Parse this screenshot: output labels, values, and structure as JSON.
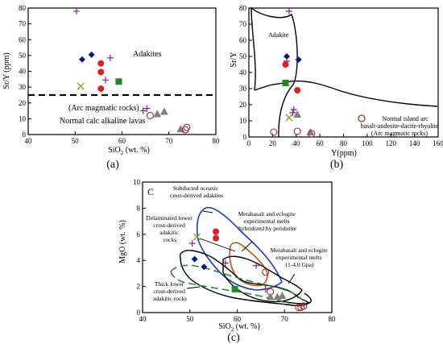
{
  "chart_data": [
    {
      "type": "scatter",
      "panel_letter": "(a)",
      "ylabel": "Sr/Y (ppm)",
      "xlabel_main": "SiO",
      "xlabel_sub": "2",
      "xlabel_rest": " (wt. %)",
      "xlim": [
        40,
        80
      ],
      "ylim": [
        0,
        80
      ],
      "xticks": [
        40,
        50,
        60,
        70,
        80
      ],
      "yticks": [
        0,
        10,
        20,
        30,
        40,
        50,
        60,
        70,
        80
      ],
      "divider_y": 25,
      "annotations": {
        "adakites": "Adakites",
        "arc": "(Arc magmatic rocks)",
        "calc": "Normal calc alkaline lavas"
      },
      "points": [
        {
          "x": 50.3,
          "y": 78.0,
          "m": "plus"
        },
        {
          "x": 51.5,
          "y": 47.5,
          "m": "diamond"
        },
        {
          "x": 53.5,
          "y": 50.5,
          "m": "diamond"
        },
        {
          "x": 55.5,
          "y": 45.0,
          "m": "circle"
        },
        {
          "x": 57.5,
          "y": 48.5,
          "m": "plus"
        },
        {
          "x": 55.5,
          "y": 39.5,
          "m": "circle"
        },
        {
          "x": 56.5,
          "y": 34.5,
          "m": "plus"
        },
        {
          "x": 59.3,
          "y": 33.5,
          "m": "square"
        },
        {
          "x": 55.5,
          "y": 29.0,
          "m": "circle"
        },
        {
          "x": 51.2,
          "y": 30.5,
          "m": "cross"
        },
        {
          "x": 64.5,
          "y": 15.0,
          "m": "plus"
        },
        {
          "x": 65.3,
          "y": 16.5,
          "m": "plus"
        },
        {
          "x": 66.0,
          "y": 12.0,
          "m": "hollow-circle"
        },
        {
          "x": 67.5,
          "y": 13.0,
          "m": "triangle"
        },
        {
          "x": 69.0,
          "y": 14.5,
          "m": "triangle"
        },
        {
          "x": 72.5,
          "y": 3.5,
          "m": "triangle"
        },
        {
          "x": 73.5,
          "y": 3.0,
          "m": "hollow-circle"
        },
        {
          "x": 73.8,
          "y": 4.5,
          "m": "hollow-circle"
        }
      ]
    },
    {
      "type": "scatter",
      "panel_letter": "(b)",
      "ylabel": "Sr/Y",
      "xlabel": "Y(ppm)",
      "xlim": [
        0,
        160
      ],
      "ylim": [
        0,
        80
      ],
      "xticks": [
        0,
        20,
        40,
        60,
        80,
        100,
        120,
        140,
        160
      ],
      "yticks": [
        0,
        10,
        20,
        30,
        40,
        50,
        60,
        70,
        80
      ],
      "annotations": {
        "adakite": "Adakite",
        "arc1": "Normal island arc",
        "arc2": "basalt-andesite-dacite-rhyolite",
        "arc3": "(Arc magmatic rocks)"
      },
      "points": [
        {
          "x": 34,
          "y": 78,
          "m": "plus"
        },
        {
          "x": 32,
          "y": 50,
          "m": "diamond"
        },
        {
          "x": 32,
          "y": 47,
          "m": "plus"
        },
        {
          "x": 42,
          "y": 48,
          "m": "diamond"
        },
        {
          "x": 31,
          "y": 45,
          "m": "circle"
        },
        {
          "x": 41,
          "y": 29,
          "m": "circle"
        },
        {
          "x": 31,
          "y": 33.5,
          "m": "square"
        },
        {
          "x": 38,
          "y": 17,
          "m": "plus"
        },
        {
          "x": 37,
          "y": 15,
          "m": "plus"
        },
        {
          "x": 41,
          "y": 14,
          "m": "triangle"
        },
        {
          "x": 34,
          "y": 12,
          "m": "cross"
        },
        {
          "x": 21,
          "y": 3,
          "m": "hollow-circle"
        },
        {
          "x": 41,
          "y": 3.5,
          "m": "hollow-circle"
        },
        {
          "x": 52,
          "y": 3,
          "m": "triangle"
        },
        {
          "x": 53,
          "y": 2,
          "m": "hollow-circle"
        }
      ]
    },
    {
      "type": "scatter",
      "panel_letter": "(c)",
      "corner_label": "C",
      "ylabel": "MgO (wt. %)",
      "xlabel_main": "SiO",
      "xlabel_sub": "2",
      "xlabel_rest": " (wt. %)",
      "xlim": [
        40,
        80
      ],
      "ylim": [
        0,
        10
      ],
      "xticks": [
        40,
        50,
        60,
        70,
        80
      ],
      "yticks": [
        0,
        2,
        4,
        6,
        8,
        10
      ],
      "annotations": {
        "subducted": [
          "Subducted oceanic",
          "crust-derived adakites"
        ],
        "delaminated": [
          "Delaminated lower",
          "crust-derived",
          "adakitic",
          "rocks"
        ],
        "metabasalt1": [
          "Metabasalt and eclogite",
          "experimental melts",
          "hybridized by peridotite"
        ],
        "metabasalt2": [
          "Metabasalt and eclogite",
          "experimental melts",
          "(1-4.0 Gpa)"
        ],
        "thick": [
          "Thick lower",
          "crust-derived",
          "adakitic rocks"
        ]
      },
      "points": [
        {
          "x": 50.5,
          "y": 5.3,
          "m": "plus"
        },
        {
          "x": 51.5,
          "y": 5.8,
          "m": "cross"
        },
        {
          "x": 55.5,
          "y": 6.2,
          "m": "circle"
        },
        {
          "x": 55.5,
          "y": 5.7,
          "m": "circle"
        },
        {
          "x": 51.0,
          "y": 4.1,
          "m": "diamond"
        },
        {
          "x": 53.0,
          "y": 3.5,
          "m": "diamond"
        },
        {
          "x": 57.5,
          "y": 3.8,
          "m": "plus"
        },
        {
          "x": 59.5,
          "y": 1.8,
          "m": "square"
        },
        {
          "x": 64.0,
          "y": 3.6,
          "m": "plus"
        },
        {
          "x": 66.0,
          "y": 1.8,
          "m": "plus"
        },
        {
          "x": 66.0,
          "y": 3.1,
          "m": "hollow-circle"
        },
        {
          "x": 67.0,
          "y": 1.6,
          "m": "hollow-circle"
        },
        {
          "x": 67.0,
          "y": 1.2,
          "m": "triangle"
        },
        {
          "x": 68.5,
          "y": 1.2,
          "m": "triangle"
        },
        {
          "x": 69.5,
          "y": 1.3,
          "m": "triangle"
        },
        {
          "x": 73.0,
          "y": 0.4,
          "m": "hollow-circle"
        },
        {
          "x": 73.5,
          "y": 0.4,
          "m": "hollow-circle"
        },
        {
          "x": 74.0,
          "y": 0.5,
          "m": "hollow-circle"
        }
      ]
    }
  ],
  "colors": {
    "plus": "#8b1a9e",
    "diamond": "#0a1a7a",
    "circle": "#e02020",
    "square": "#1f8a1f",
    "cross": "#8aa020",
    "triangle": "#808080",
    "hollow": "#a02a2a",
    "blue_field": "#1a3cc8",
    "orange_field": "#c2541e",
    "green_field": "#2a8a3a",
    "black": "#000000"
  }
}
